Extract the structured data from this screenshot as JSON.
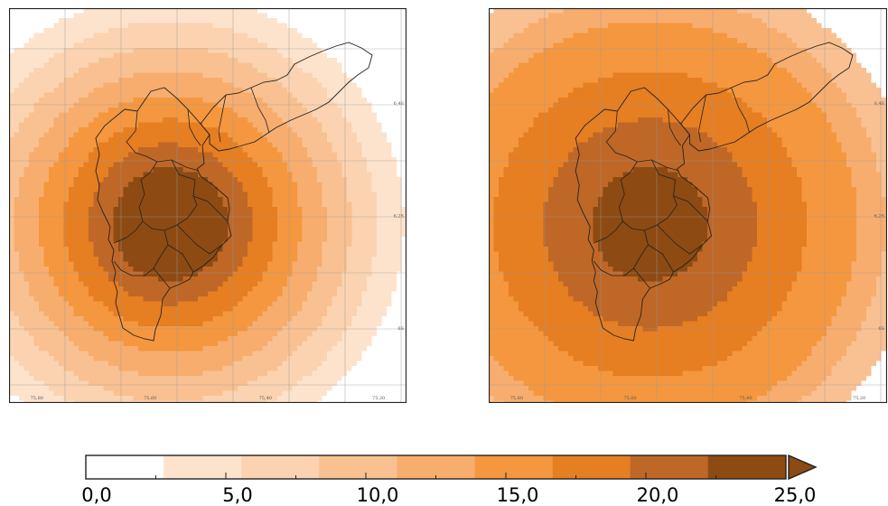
{
  "colorbar": {
    "min": 0,
    "max": 25,
    "extend": "max",
    "levels": [
      0,
      2.78,
      5.56,
      8.33,
      11.11,
      13.89,
      16.67,
      19.44,
      22.22,
      25
    ],
    "colors": [
      "#ffffff",
      "#fde3cc",
      "#fbd3b0",
      "#f9c191",
      "#f7ad6e",
      "#f4973f",
      "#e67e22",
      "#bf6726",
      "#8d4a12"
    ],
    "extend_color": "#8d4a12",
    "tick_labels": [
      "0,0",
      "5,0",
      "10,0",
      "15,0",
      "20,0",
      "25,0"
    ],
    "tick_values": [
      0,
      5,
      10,
      15,
      20,
      25
    ]
  },
  "maps": [
    {
      "name": "left",
      "lon_labels": [
        "75,80",
        "75,60",
        "75,40",
        "75,20"
      ],
      "lat_labels": [
        "6,4S",
        "6,2S",
        "6S"
      ],
      "levels_center_out": [
        8,
        7,
        6,
        5,
        4,
        3,
        2,
        1,
        0
      ],
      "outer_color": "#fde3cc"
    },
    {
      "name": "right",
      "lon_labels": [
        "75,80",
        "75,60",
        "75,40",
        "75,20"
      ],
      "lat_labels": [
        "6,4S",
        "6,2S",
        "6S"
      ],
      "levels_center_out": [
        8,
        7,
        7,
        6,
        6,
        5,
        5,
        4,
        3
      ],
      "outer_color": "#fbd3b0"
    }
  ]
}
